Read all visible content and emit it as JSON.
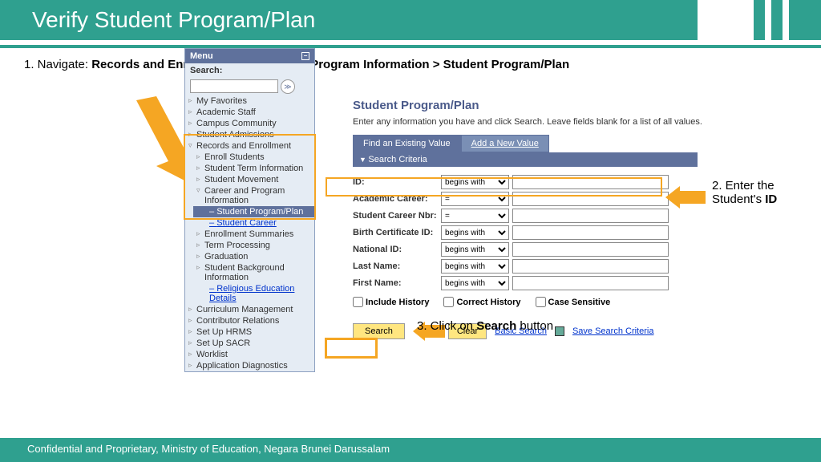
{
  "header": {
    "title": "Verify Student Program/Plan"
  },
  "step1_text": "1. Navigate: ",
  "step1_bold": "Records and Enrollment > Career and Program Information > Student Program/Plan",
  "menu": {
    "title": "Menu",
    "search_label": "Search:",
    "top_items": [
      "My Favorites",
      "Academic Staff",
      "Campus Community",
      "Student Admissions"
    ],
    "records": "Records and Enrollment",
    "records_sub": [
      "Enroll Students",
      "Student Term Information",
      "Student Movement"
    ],
    "career": "Career and Program Information",
    "active": "Student Program/Plan",
    "career_link": "Student Career",
    "more_sub": [
      "Enrollment Summaries",
      "Term Processing",
      "Graduation",
      "Student Background Information"
    ],
    "religious": "Religious Education Details",
    "bottom_items": [
      "Curriculum Management",
      "Contributor Relations",
      "Set Up HRMS",
      "Set Up SACR",
      "Worklist",
      "Application Diagnostics"
    ]
  },
  "page": {
    "title": "Student Program/Plan",
    "subtitle": "Enter any information you have and click Search. Leave fields blank for a list of all values.",
    "tab1": "Find an Existing Value",
    "tab2": "Add a New Value",
    "criteria": "Search Criteria"
  },
  "form": {
    "fields": [
      {
        "label": "ID:",
        "op": "begins with"
      },
      {
        "label": "Academic Career:",
        "op": "="
      },
      {
        "label": "Student Career Nbr:",
        "op": "="
      },
      {
        "label": "Birth Certificate ID:",
        "op": "begins with"
      },
      {
        "label": "National ID:",
        "op": "begins with"
      },
      {
        "label": "Last Name:",
        "op": "begins with"
      },
      {
        "label": "First Name:",
        "op": "begins with"
      }
    ],
    "check1": "Include History",
    "check2": "Correct History",
    "check3": "Case Sensitive",
    "search": "Search",
    "clear": "Clear",
    "basic": "Basic Search",
    "save": "Save Search Criteria"
  },
  "annotations": {
    "step2a": "2. Enter the",
    "step2b": "Student's ",
    "step2c": "ID",
    "step3a": "3. Click on ",
    "step3b": "Search",
    "step3c": " button"
  },
  "footer": "Confidential and Proprietary, Ministry of Education, Negara Brunei Darussalam",
  "colors": {
    "teal": "#2fa08f",
    "yellow": "#f5a623",
    "navblue": "#5f719c"
  }
}
